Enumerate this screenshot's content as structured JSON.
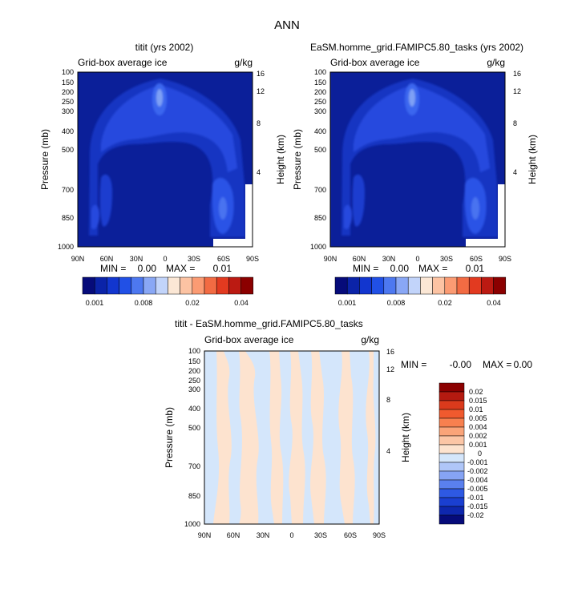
{
  "page_title": "ANN",
  "colors": {
    "dark_navy": "#0d1a8c",
    "navy": "#0b1f99",
    "blue": "#1e43d6",
    "mid_blue": "#2f57e8",
    "light_blue": "#6f8ff3",
    "pale_blue": "#d4e6fb",
    "peach": "#fde3cf",
    "dark_red": "#8b0000"
  },
  "chart_data": [
    {
      "type": "contour",
      "title": "titit (yrs 2002)",
      "subtitle_left": "Grid-box average ice",
      "subtitle_right": "g/kg",
      "ylabel": "Pressure (mb)",
      "ylabel_right": "Height (km)",
      "x_ticks": [
        "90N",
        "60N",
        "30N",
        "0",
        "30S",
        "60S",
        "90S"
      ],
      "y_ticks": [
        "100",
        "150",
        "200",
        "250",
        "300",
        "400",
        "500",
        "700",
        "850",
        "1000"
      ],
      "y_right_ticks": [
        "16",
        "12",
        "8",
        "4"
      ],
      "ylim": [
        1000,
        100
      ],
      "min_label": "MIN =",
      "min_value": "0.00",
      "max_label": "MAX =",
      "max_value": "0.01",
      "colorbar_labels": [
        "0.001",
        "0.008",
        "0.02",
        "0.04"
      ],
      "levels": [
        "0.001",
        "0.002",
        "0.004",
        "0.006",
        "0.008",
        "0.01",
        "0.015",
        "0.02",
        "0.025",
        "0.03",
        "0.035",
        "0.04",
        "0.045",
        "0.05"
      ]
    },
    {
      "type": "contour",
      "title": "EaSM.homme_grid.FAMIPC5.80_tasks (yrs 2002)",
      "subtitle_left": "Grid-box average ice",
      "subtitle_right": "g/kg",
      "ylabel": "Pressure (mb)",
      "ylabel_right": "Height (km)",
      "x_ticks": [
        "90N",
        "60N",
        "30N",
        "0",
        "30S",
        "60S",
        "90S"
      ],
      "y_ticks": [
        "100",
        "150",
        "200",
        "250",
        "300",
        "400",
        "500",
        "700",
        "850",
        "1000"
      ],
      "y_right_ticks": [
        "16",
        "12",
        "8",
        "4"
      ],
      "ylim": [
        1000,
        100
      ],
      "min_label": "MIN =",
      "min_value": "0.00",
      "max_label": "MAX =",
      "max_value": "0.01",
      "colorbar_labels": [
        "0.001",
        "0.008",
        "0.02",
        "0.04"
      ],
      "levels": [
        "0.001",
        "0.002",
        "0.004",
        "0.006",
        "0.008",
        "0.01",
        "0.015",
        "0.02",
        "0.025",
        "0.03",
        "0.035",
        "0.04",
        "0.045",
        "0.05"
      ]
    },
    {
      "type": "contour",
      "title": "titit - EaSM.homme_grid.FAMIPC5.80_tasks",
      "subtitle_left": "Grid-box average ice",
      "subtitle_right": "g/kg",
      "ylabel": "Pressure (mb)",
      "ylabel_right": "Height (km)",
      "x_ticks": [
        "90N",
        "60N",
        "30N",
        "0",
        "30S",
        "60S",
        "90S"
      ],
      "y_ticks": [
        "100",
        "150",
        "200",
        "250",
        "300",
        "400",
        "500",
        "700",
        "850",
        "1000"
      ],
      "y_right_ticks": [
        "16",
        "12",
        "8",
        "4"
      ],
      "ylim": [
        1000,
        100
      ],
      "min_label": "MIN =",
      "min_value": "-0.00",
      "max_label": "MAX =",
      "max_value": "0.00",
      "colorbar_labels": [
        "0.02",
        "0.015",
        "0.01",
        "0.005",
        "0.004",
        "0.002",
        "0.001",
        "0",
        "-0.001",
        "-0.002",
        "-0.004",
        "-0.005",
        "-0.01",
        "-0.015",
        "-0.02"
      ]
    }
  ]
}
